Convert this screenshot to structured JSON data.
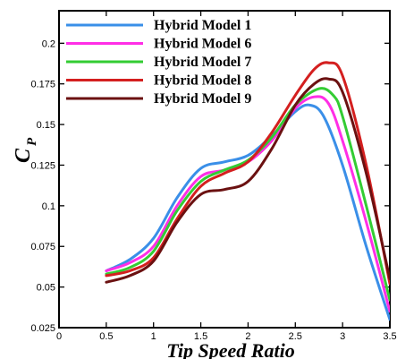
{
  "chart_data": {
    "type": "line",
    "xlabel": "Tip Speed Ratio",
    "ylabel": "C",
    "ylabel_subscript": "P",
    "xlim": [
      0,
      3.5
    ],
    "ylim": [
      0.025,
      0.22
    ],
    "xticks": [
      0,
      0.5,
      1,
      1.5,
      2,
      2.5,
      3,
      3.5
    ],
    "xtick_labels": [
      "0",
      "0.5",
      "1",
      "1.5",
      "2",
      "2.5",
      "3",
      "3.5"
    ],
    "yticks": [
      0.025,
      0.05,
      0.075,
      0.1,
      0.125,
      0.15,
      0.175,
      0.2
    ],
    "ytick_labels": [
      "0.025",
      "0.05",
      "0.075",
      "0.1",
      "0.125",
      "0.15",
      "0.175",
      "0.2"
    ],
    "grid": false,
    "legend_position": "top-left",
    "series": [
      {
        "name": "Hybrid Model 1",
        "color": "#3a8fe8",
        "x": [
          0.5,
          0.75,
          1.0,
          1.25,
          1.5,
          1.75,
          2.0,
          2.25,
          2.5,
          2.65,
          2.8,
          3.0,
          3.25,
          3.5
        ],
        "y": [
          0.06,
          0.067,
          0.08,
          0.105,
          0.123,
          0.127,
          0.131,
          0.143,
          0.158,
          0.162,
          0.155,
          0.125,
          0.075,
          0.03
        ]
      },
      {
        "name": "Hybrid Model 6",
        "color": "#ff2ee6",
        "x": [
          0.5,
          0.75,
          1.0,
          1.25,
          1.5,
          1.75,
          2.0,
          2.25,
          2.5,
          2.7,
          2.85,
          3.0,
          3.25,
          3.5
        ],
        "y": [
          0.06,
          0.065,
          0.075,
          0.1,
          0.118,
          0.122,
          0.127,
          0.14,
          0.16,
          0.167,
          0.163,
          0.14,
          0.09,
          0.035
        ]
      },
      {
        "name": "Hybrid Model 7",
        "color": "#33cc33",
        "x": [
          0.5,
          0.75,
          1.0,
          1.25,
          1.5,
          1.75,
          2.0,
          2.25,
          2.5,
          2.75,
          2.9,
          3.0,
          3.25,
          3.5
        ],
        "y": [
          0.058,
          0.062,
          0.072,
          0.097,
          0.115,
          0.122,
          0.128,
          0.142,
          0.162,
          0.172,
          0.168,
          0.155,
          0.1,
          0.042
        ]
      },
      {
        "name": "Hybrid Model 8",
        "color": "#d41f1f",
        "x": [
          0.5,
          0.75,
          1.0,
          1.25,
          1.5,
          1.75,
          2.0,
          2.25,
          2.5,
          2.7,
          2.85,
          3.0,
          3.25,
          3.5
        ],
        "y": [
          0.057,
          0.06,
          0.068,
          0.092,
          0.112,
          0.12,
          0.127,
          0.145,
          0.168,
          0.184,
          0.188,
          0.18,
          0.125,
          0.052
        ]
      },
      {
        "name": "Hybrid Model 9",
        "color": "#6b1111",
        "x": [
          0.5,
          0.75,
          1.0,
          1.25,
          1.5,
          1.75,
          2.0,
          2.25,
          2.5,
          2.7,
          2.85,
          3.0,
          3.25,
          3.5
        ],
        "y": [
          0.053,
          0.057,
          0.066,
          0.09,
          0.107,
          0.11,
          0.115,
          0.135,
          0.162,
          0.175,
          0.178,
          0.17,
          0.12,
          0.055
        ]
      }
    ]
  }
}
